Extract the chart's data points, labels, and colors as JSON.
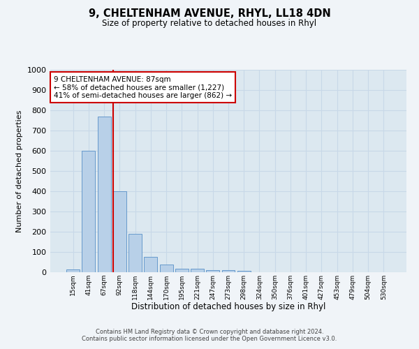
{
  "title1": "9, CHELTENHAM AVENUE, RHYL, LL18 4DN",
  "title2": "Size of property relative to detached houses in Rhyl",
  "xlabel": "Distribution of detached houses by size in Rhyl",
  "ylabel": "Number of detached properties",
  "bar_labels": [
    "15sqm",
    "41sqm",
    "67sqm",
    "92sqm",
    "118sqm",
    "144sqm",
    "170sqm",
    "195sqm",
    "221sqm",
    "247sqm",
    "273sqm",
    "298sqm",
    "324sqm",
    "350sqm",
    "376sqm",
    "401sqm",
    "427sqm",
    "453sqm",
    "479sqm",
    "504sqm",
    "530sqm"
  ],
  "bar_values": [
    15,
    600,
    770,
    400,
    190,
    75,
    38,
    18,
    18,
    12,
    12,
    7,
    0,
    0,
    0,
    0,
    0,
    0,
    0,
    0,
    0
  ],
  "bar_color": "#b8d0e8",
  "bar_edge_color": "#6699cc",
  "vline_color": "#cc0000",
  "annotation_text": "9 CHELTENHAM AVENUE: 87sqm\n← 58% of detached houses are smaller (1,227)\n41% of semi-detached houses are larger (862) →",
  "annotation_box_color": "#ffffff",
  "annotation_box_edge": "#cc0000",
  "ylim": [
    0,
    1000
  ],
  "yticks": [
    0,
    100,
    200,
    300,
    400,
    500,
    600,
    700,
    800,
    900,
    1000
  ],
  "grid_color": "#c8d8e8",
  "plot_bg_color": "#dce8f0",
  "fig_bg_color": "#f0f4f8",
  "footnote": "Contains HM Land Registry data © Crown copyright and database right 2024.\nContains public sector information licensed under the Open Government Licence v3.0."
}
